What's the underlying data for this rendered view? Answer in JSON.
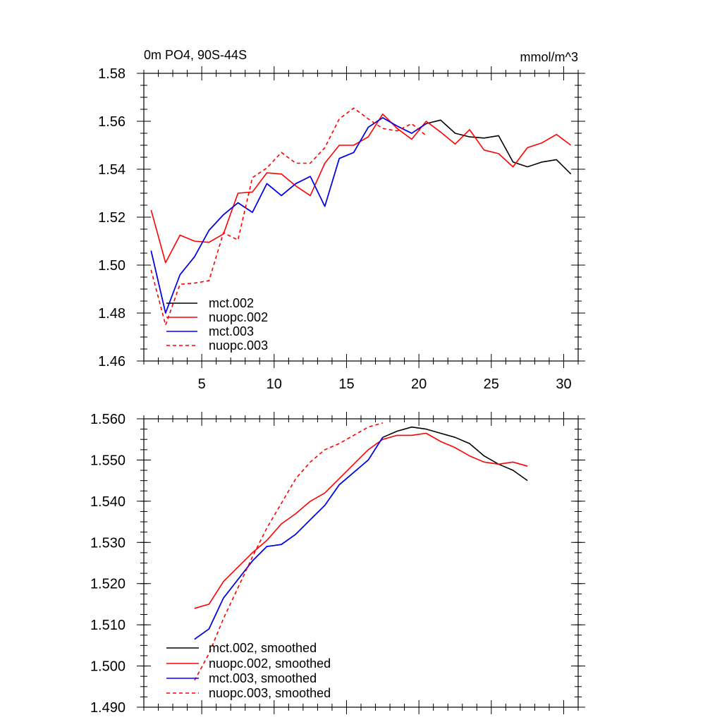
{
  "chart_data": [
    {
      "type": "line",
      "title": "0m PO4, 90S-44S",
      "units": "mmol/m^3",
      "xlim": [
        1,
        31
      ],
      "ylim": [
        1.46,
        1.58
      ],
      "xticks": [
        5,
        10,
        15,
        20,
        25,
        30
      ],
      "yticks": [
        1.46,
        1.48,
        1.5,
        1.52,
        1.54,
        1.56,
        1.58
      ],
      "ytick_labels": [
        "1.46",
        "1.48",
        "1.50",
        "1.52",
        "1.54",
        "1.56",
        "1.58"
      ],
      "legend_position": "bottom-left",
      "series": [
        {
          "name": "mct.002",
          "color": "#000000",
          "dash": "solid",
          "x": [
            1.5,
            2.5,
            3.5,
            4.5,
            5.5,
            6.5,
            7.5,
            8.5,
            9.5,
            10.5,
            11.5,
            12.5,
            13.5,
            14.5,
            15.5,
            16.5,
            17.5,
            18.5,
            19.5,
            20.5,
            21.5,
            22.5,
            23.5,
            24.5,
            25.5,
            26.5,
            27.5,
            28.5,
            29.5,
            30.5
          ],
          "values": [
            1.506,
            1.48,
            1.496,
            1.5035,
            1.5145,
            1.521,
            1.526,
            1.522,
            1.534,
            1.529,
            1.534,
            1.537,
            1.5245,
            1.5445,
            1.547,
            1.5575,
            1.5615,
            1.558,
            1.555,
            1.559,
            1.5605,
            1.555,
            1.5535,
            1.553,
            1.554,
            1.543,
            1.541,
            1.543,
            1.544,
            1.538
          ]
        },
        {
          "name": "nuopc.002",
          "color": "#ff0000",
          "dash": "solid",
          "x": [
            1.5,
            2.5,
            3.5,
            4.5,
            5.5,
            6.5,
            7.5,
            8.5,
            9.5,
            10.5,
            11.5,
            12.5,
            13.5,
            14.5,
            15.5,
            16.5,
            17.5,
            18.5,
            19.5,
            20.5,
            21.5,
            22.5,
            23.5,
            24.5,
            25.5,
            26.5,
            27.5,
            28.5,
            29.5,
            30.5
          ],
          "values": [
            1.523,
            1.501,
            1.5125,
            1.51,
            1.5095,
            1.513,
            1.53,
            1.5305,
            1.5385,
            1.538,
            1.533,
            1.529,
            1.5425,
            1.55,
            1.55,
            1.5535,
            1.563,
            1.557,
            1.5525,
            1.56,
            1.5555,
            1.5505,
            1.5565,
            1.548,
            1.5465,
            1.541,
            1.549,
            1.551,
            1.5545,
            1.55
          ]
        },
        {
          "name": "mct.003",
          "color": "#0000ff",
          "dash": "solid",
          "x": [
            1.5,
            2.5,
            3.5,
            4.5,
            5.5,
            6.5,
            7.5,
            8.5,
            9.5,
            10.5,
            11.5,
            12.5,
            13.5,
            14.5,
            15.5,
            16.5,
            17.5,
            18.5,
            19.5,
            20.5
          ],
          "values": [
            1.506,
            1.48,
            1.496,
            1.5035,
            1.5145,
            1.521,
            1.526,
            1.522,
            1.534,
            1.529,
            1.534,
            1.537,
            1.5245,
            1.5445,
            1.547,
            1.5575,
            1.5615,
            1.558,
            1.555,
            1.559
          ]
        },
        {
          "name": "nuopc.003",
          "color": "#ff0000",
          "dash": "dashed",
          "x": [
            1.5,
            2.5,
            3.5,
            4.5,
            5.5,
            6.5,
            7.5,
            8.5,
            9.5,
            10.5,
            11.5,
            12.5,
            13.5,
            14.5,
            15.5,
            16.5,
            17.5,
            18.5,
            19.5,
            20.5
          ],
          "values": [
            1.498,
            1.475,
            1.492,
            1.4925,
            1.4935,
            1.5135,
            1.5105,
            1.5365,
            1.5405,
            1.547,
            1.5425,
            1.5425,
            1.549,
            1.561,
            1.5655,
            1.561,
            1.557,
            1.556,
            1.559,
            1.554
          ]
        }
      ]
    },
    {
      "type": "line",
      "xlim": [
        1,
        31
      ],
      "ylim": [
        1.49,
        1.56
      ],
      "xticks": [
        5,
        10,
        15,
        20,
        25,
        30
      ],
      "yticks": [
        1.49,
        1.5,
        1.51,
        1.52,
        1.53,
        1.54,
        1.55,
        1.56
      ],
      "ytick_labels": [
        "1.490",
        "1.500",
        "1.510",
        "1.520",
        "1.530",
        "1.540",
        "1.550",
        "1.560"
      ],
      "legend_position": "bottom-left",
      "series": [
        {
          "name": "mct.002, smoothed",
          "color": "#000000",
          "dash": "solid",
          "x": [
            4.5,
            5.5,
            6.5,
            7.5,
            8.5,
            9.5,
            10.5,
            11.5,
            12.5,
            13.5,
            14.5,
            15.5,
            16.5,
            17.5,
            18.5,
            19.5,
            20.5,
            21.5,
            22.5,
            23.5,
            24.5,
            25.5,
            26.5,
            27.5
          ],
          "values": [
            1.5065,
            1.509,
            1.5165,
            1.521,
            1.5255,
            1.529,
            1.5295,
            1.532,
            1.5355,
            1.539,
            1.544,
            1.547,
            1.55,
            1.5555,
            1.557,
            1.558,
            1.5575,
            1.5565,
            1.5555,
            1.554,
            1.551,
            1.549,
            1.5475,
            1.545
          ]
        },
        {
          "name": "nuopc.002, smoothed",
          "color": "#ff0000",
          "dash": "solid",
          "x": [
            4.5,
            5.5,
            6.5,
            7.5,
            8.5,
            9.5,
            10.5,
            11.5,
            12.5,
            13.5,
            14.5,
            15.5,
            16.5,
            17.5,
            18.5,
            19.5,
            20.5,
            21.5,
            22.5,
            23.5,
            24.5,
            25.5,
            26.5,
            27.5
          ],
          "values": [
            1.514,
            1.515,
            1.5205,
            1.524,
            1.5275,
            1.5305,
            1.5345,
            1.537,
            1.54,
            1.542,
            1.5455,
            1.549,
            1.5525,
            1.555,
            1.556,
            1.556,
            1.5565,
            1.5545,
            1.553,
            1.551,
            1.5495,
            1.549,
            1.5495,
            1.5485
          ]
        },
        {
          "name": "mct.003, smoothed",
          "color": "#0000ff",
          "dash": "solid",
          "x": [
            4.5,
            5.5,
            6.5,
            7.5,
            8.5,
            9.5,
            10.5,
            11.5,
            12.5,
            13.5,
            14.5,
            15.5,
            16.5,
            17.5
          ],
          "values": [
            1.5065,
            1.509,
            1.5165,
            1.521,
            1.5255,
            1.529,
            1.5295,
            1.532,
            1.5355,
            1.539,
            1.544,
            1.547,
            1.55,
            1.5555
          ]
        },
        {
          "name": "nuopc.003, smoothed",
          "color": "#ff0000",
          "dash": "dashed",
          "x": [
            4.5,
            5.5,
            6.5,
            7.5,
            8.5,
            9.5,
            10.5,
            11.5,
            12.5,
            13.5,
            14.5,
            15.5,
            16.5,
            17.5
          ],
          "values": [
            1.4965,
            1.503,
            1.5115,
            1.519,
            1.5265,
            1.5335,
            1.5395,
            1.5455,
            1.5495,
            1.5525,
            1.554,
            1.556,
            1.558,
            1.559
          ]
        }
      ]
    }
  ]
}
